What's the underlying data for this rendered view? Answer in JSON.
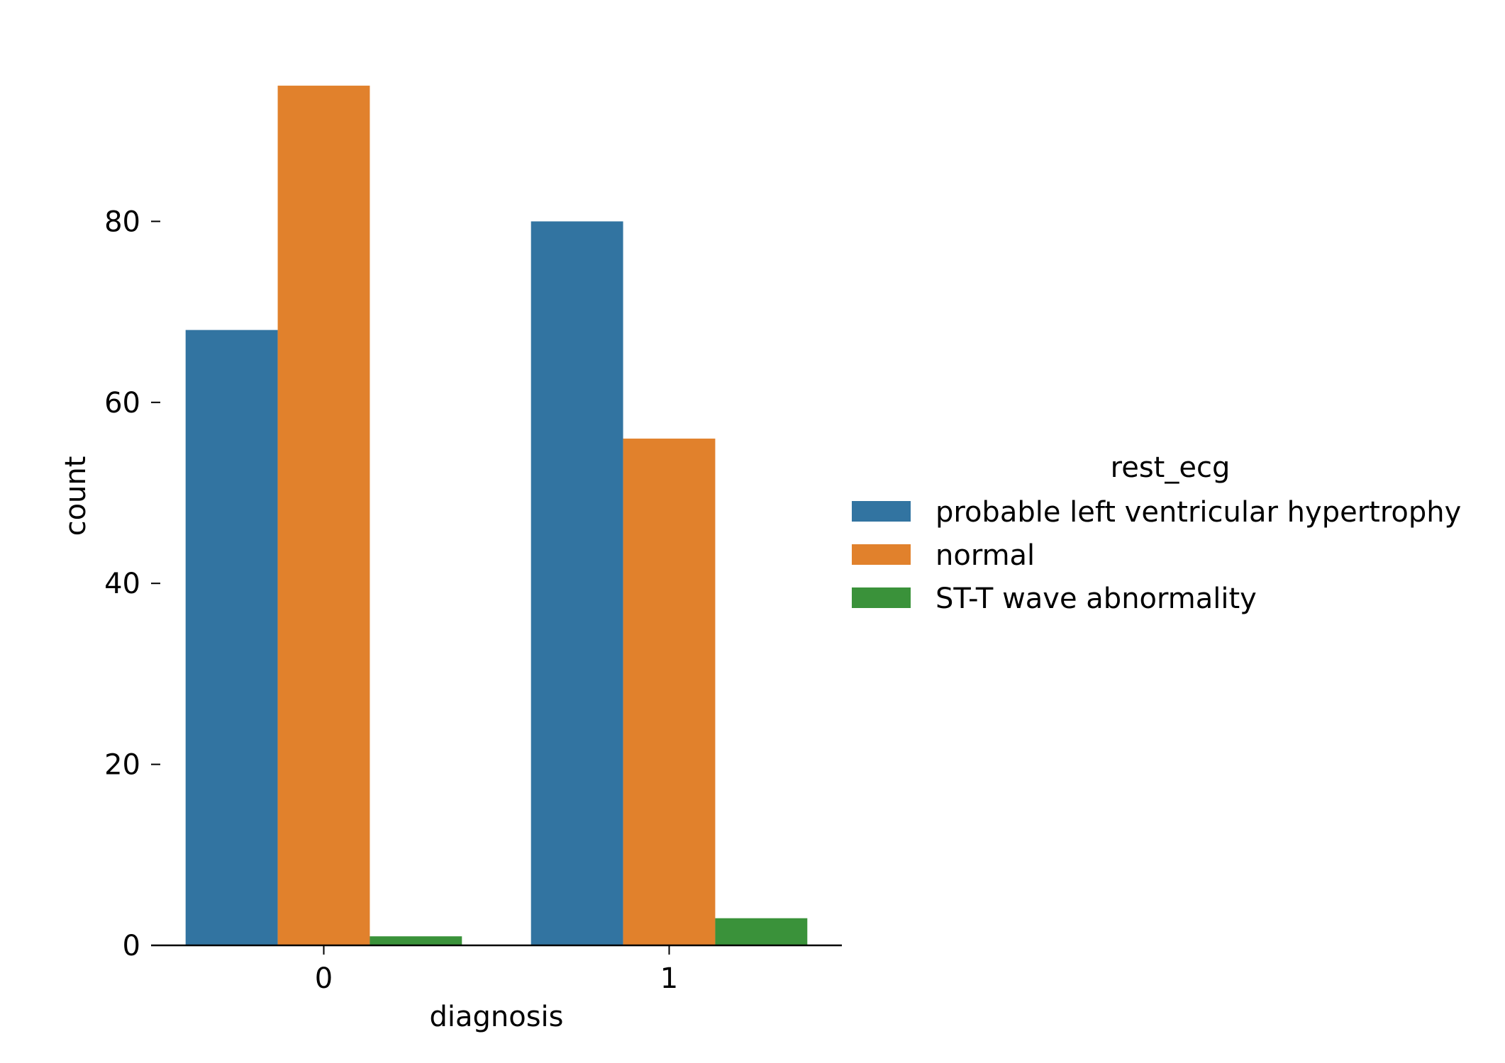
{
  "chart_data": {
    "type": "bar",
    "xlabel": "diagnosis",
    "ylabel": "count",
    "categories": [
      "0",
      "1"
    ],
    "ylim": [
      0,
      100
    ],
    "yticks": [
      0,
      20,
      40,
      60,
      80
    ],
    "grid": false,
    "legend": {
      "title": "rest_ecg",
      "placement": "right"
    },
    "series": [
      {
        "name": "probable left ventricular hypertrophy",
        "color": "#3274a1",
        "values": [
          68,
          80
        ]
      },
      {
        "name": "normal",
        "color": "#e1812c",
        "values": [
          95,
          56
        ]
      },
      {
        "name": "ST-T wave abnormality",
        "color": "#3a923a",
        "values": [
          1,
          3
        ]
      }
    ]
  }
}
